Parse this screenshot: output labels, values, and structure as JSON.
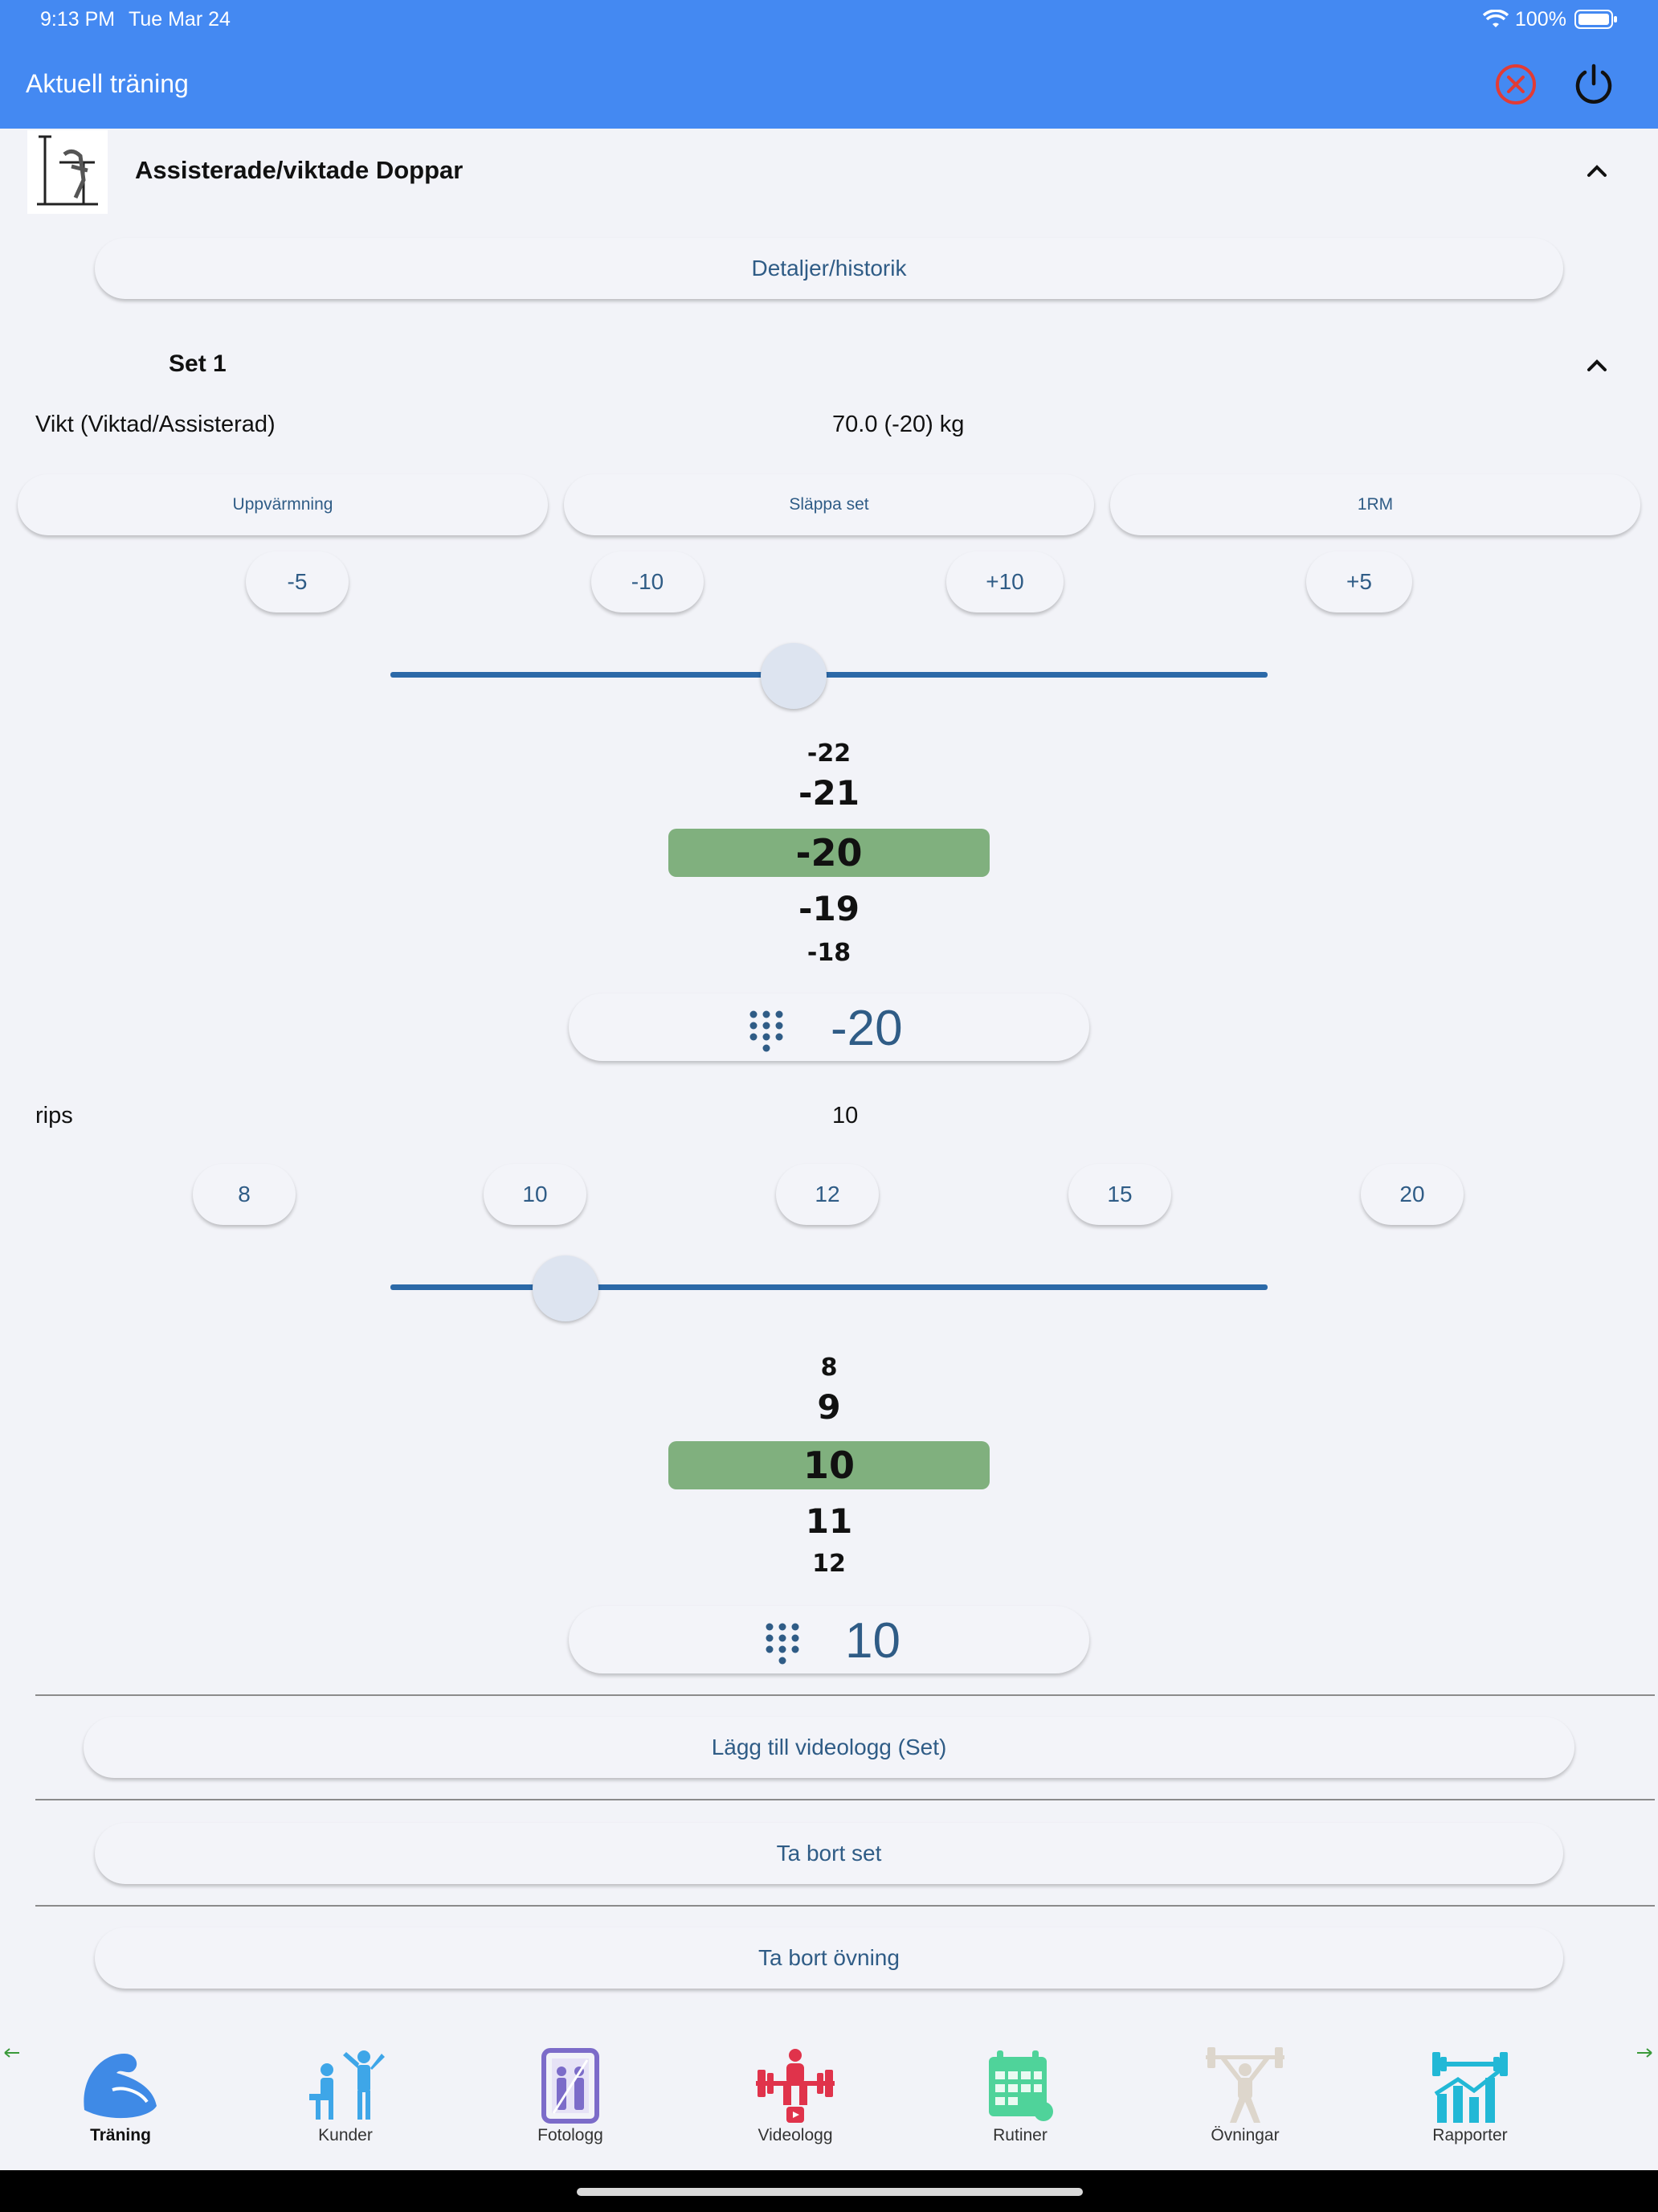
{
  "status_bar": {
    "time": "9:13 PM",
    "date": "Tue Mar 24",
    "battery": "100%"
  },
  "header": {
    "title": "Aktuell träning"
  },
  "exercise": {
    "name": "Assisterade/viktade Doppar",
    "details_button": "Detaljer/historik"
  },
  "set": {
    "title": "Set 1",
    "weight_label": "Vikt (Viktad/Assisterad)",
    "weight_value": "70.0 (-20) kg",
    "set_types": [
      "Uppvärmning",
      "Släppa set",
      "1RM"
    ],
    "weight_steps": [
      "-5",
      "-10",
      "+10",
      "+5"
    ],
    "weight_slider_fraction": 0.46,
    "weight_picker": [
      "-22",
      "-21",
      "-20",
      "-19",
      "-18"
    ],
    "weight_selected": "-20",
    "reps_label": "rips",
    "reps_value": "10",
    "reps_quick": [
      "8",
      "10",
      "12",
      "15",
      "20"
    ],
    "reps_slider_fraction": 0.2,
    "reps_picker": [
      "8",
      "9",
      "10",
      "11",
      "12"
    ],
    "reps_selected": "10"
  },
  "actions": {
    "add_video": "Lägg till videologg (Set)",
    "delete_set": "Ta bort set",
    "delete_exercise": "Ta bort övning"
  },
  "nav": [
    {
      "label": "Träning",
      "icon": "muscle-icon",
      "active": true
    },
    {
      "label": "Kunder",
      "icon": "trainer-client-icon",
      "active": false
    },
    {
      "label": "Fotologg",
      "icon": "mirror-photo-icon",
      "active": false
    },
    {
      "label": "Videologg",
      "icon": "weightlifter-video-icon",
      "active": false
    },
    {
      "label": "Rutiner",
      "icon": "calendar-icon",
      "active": false
    },
    {
      "label": "Övningar",
      "icon": "barbell-person-icon",
      "active": false
    },
    {
      "label": "Rapporter",
      "icon": "chart-barbell-icon",
      "active": false
    }
  ],
  "colors": {
    "header": "#4489f2",
    "accent": "#2f5c86",
    "picker_highlight": "#80b07e",
    "close": "#e23b35"
  }
}
